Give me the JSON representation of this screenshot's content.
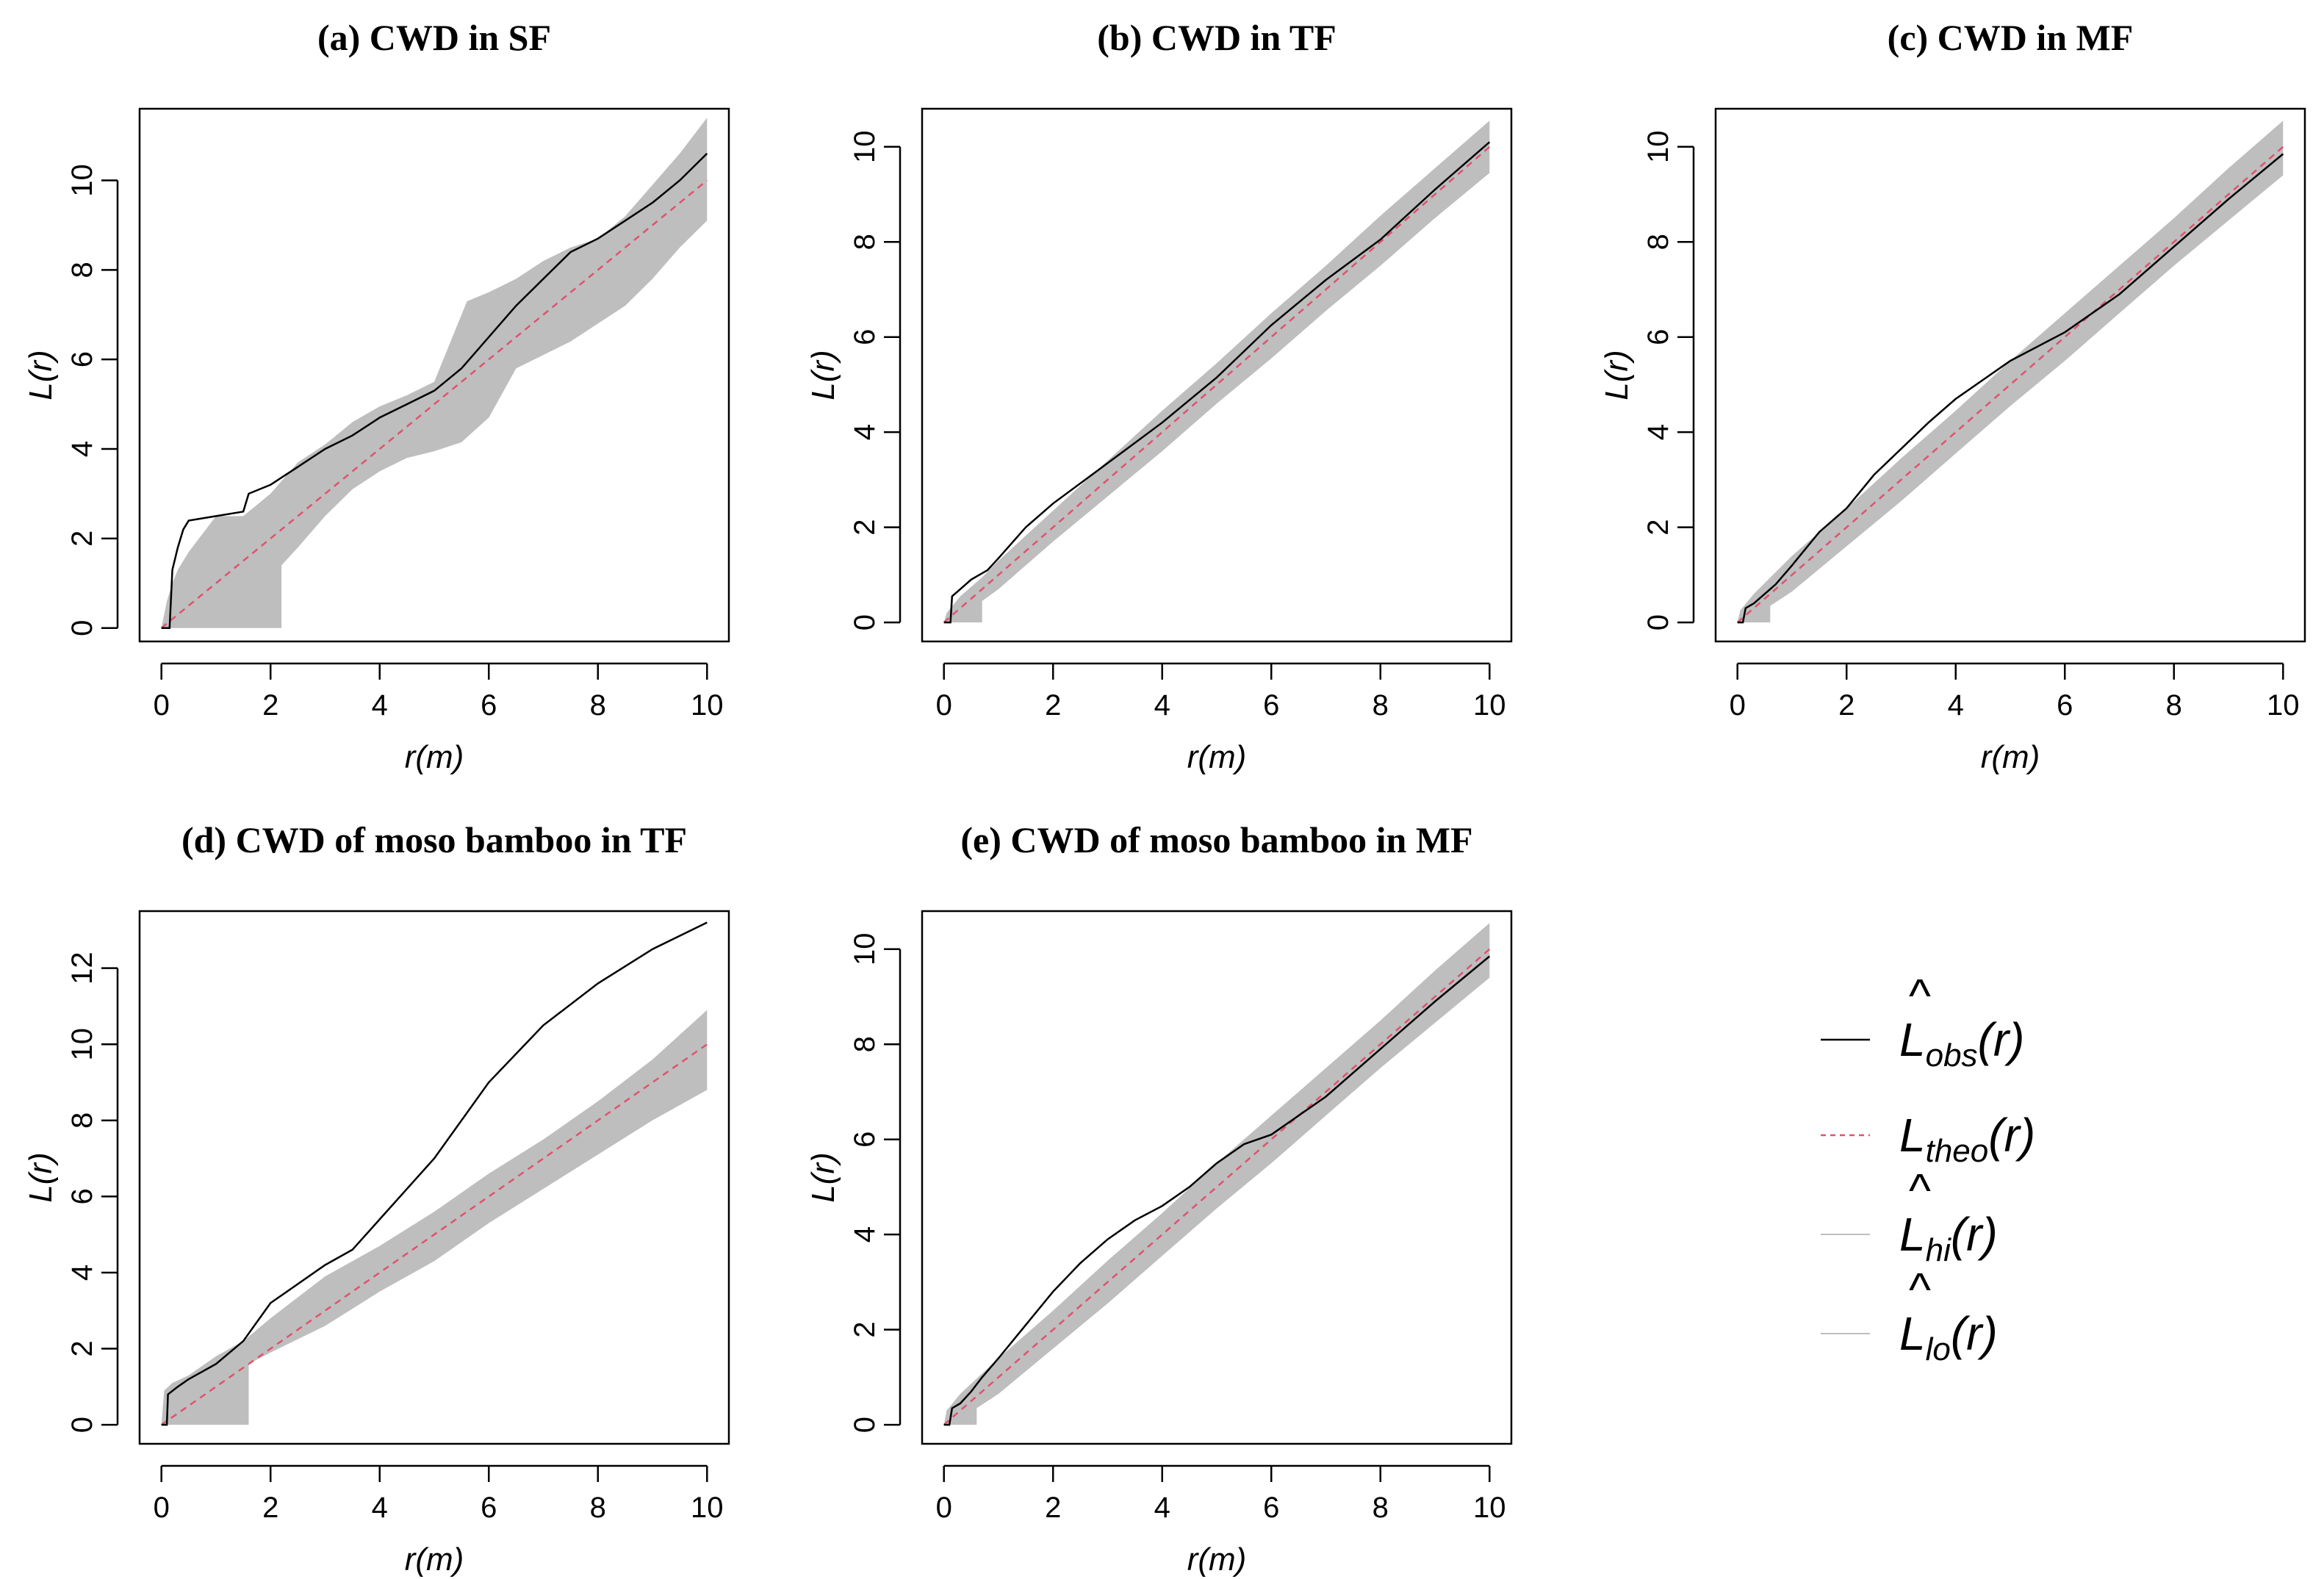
{
  "figure": {
    "legend": [
      {
        "key": "obs",
        "main": "L",
        "sub": "obs",
        "arg": "(r)",
        "hat": true,
        "color": "#000000",
        "dash": false
      },
      {
        "key": "theo",
        "main": "L",
        "sub": "theo",
        "arg": "(r)",
        "hat": false,
        "color": "#df536b",
        "dash": true
      },
      {
        "key": "hi",
        "main": "L",
        "sub": "hi",
        "arg": "(r)",
        "hat": true,
        "color": "#bebebe",
        "dash": false
      },
      {
        "key": "lo",
        "main": "L",
        "sub": "lo",
        "arg": "(r)",
        "hat": true,
        "color": "#bebebe",
        "dash": false
      }
    ],
    "hat_symbol": "^",
    "colors": {
      "envelope": "#bebebe",
      "observed": "#000000",
      "theoretical": "#df536b",
      "frame": "#000000"
    }
  },
  "chart_data": [
    {
      "type": "line",
      "title": "(a) CWD in SF",
      "xlabel": "r(m)",
      "ylabel": "L(r)",
      "xlim": [
        0,
        10
      ],
      "ylim": [
        -0.3,
        11.6
      ],
      "xticks": [
        "0",
        "2",
        "4",
        "6",
        "8",
        "10"
      ],
      "yticks": [
        "0",
        "2",
        "4",
        "6",
        "8",
        "10"
      ],
      "series": [
        {
          "name": "Lhi",
          "x": [
            0,
            0.05,
            0.1,
            0.2,
            0.3,
            0.5,
            1.0,
            1.5,
            2.0,
            2.5,
            3.0,
            3.5,
            4.0,
            4.5,
            5.0,
            5.3,
            5.6,
            6.0,
            6.5,
            7.0,
            7.5,
            8.0,
            8.5,
            9.0,
            9.5,
            10.0
          ],
          "y": [
            0,
            0.3,
            0.6,
            1.0,
            1.3,
            1.7,
            2.5,
            2.5,
            3.0,
            3.7,
            4.1,
            4.6,
            4.95,
            5.2,
            5.5,
            6.4,
            7.3,
            7.5,
            7.8,
            8.2,
            8.5,
            8.7,
            9.2,
            9.9,
            10.6,
            11.4
          ]
        },
        {
          "name": "Llo",
          "x": [
            0,
            2.2,
            2.2,
            2.5,
            3.0,
            3.5,
            4.0,
            4.5,
            5.0,
            5.5,
            6.0,
            6.5,
            7.0,
            7.5,
            8.0,
            8.5,
            9.0,
            9.5,
            10.0
          ],
          "y": [
            0,
            0,
            1.4,
            1.8,
            2.5,
            3.1,
            3.5,
            3.8,
            3.95,
            4.15,
            4.7,
            5.8,
            6.1,
            6.4,
            6.8,
            7.2,
            7.8,
            8.5,
            9.1
          ]
        },
        {
          "name": "Lobs",
          "x": [
            0,
            0.15,
            0.2,
            0.3,
            0.4,
            0.5,
            1.0,
            1.5,
            1.6,
            2.0,
            2.5,
            3.0,
            3.5,
            4.0,
            4.5,
            5.0,
            5.5,
            6.0,
            6.5,
            7.0,
            7.5,
            8.0,
            8.5,
            9.0,
            9.5,
            10.0
          ],
          "y": [
            0,
            0,
            1.3,
            1.8,
            2.2,
            2.4,
            2.5,
            2.6,
            3.0,
            3.2,
            3.6,
            4.0,
            4.3,
            4.7,
            5.0,
            5.3,
            5.8,
            6.5,
            7.2,
            7.8,
            8.4,
            8.7,
            9.1,
            9.5,
            10.0,
            10.6
          ]
        },
        {
          "name": "Ltheo",
          "x": [
            0,
            10
          ],
          "y": [
            0,
            10
          ]
        }
      ]
    },
    {
      "type": "line",
      "title": "(b) CWD in TF",
      "xlabel": "r(m)",
      "ylabel": "L(r)",
      "xlim": [
        0,
        10
      ],
      "ylim": [
        -0.4,
        10.8
      ],
      "xticks": [
        "0",
        "2",
        "4",
        "6",
        "8",
        "10"
      ],
      "yticks": [
        "0",
        "2",
        "4",
        "6",
        "8",
        "10"
      ],
      "series": [
        {
          "name": "Lhi",
          "x": [
            0,
            0.05,
            0.3,
            0.7,
            1,
            2,
            3,
            4,
            5,
            6,
            7,
            8,
            9,
            10
          ],
          "y": [
            0,
            0.2,
            0.55,
            0.95,
            1.3,
            2.35,
            3.4,
            4.45,
            5.45,
            6.5,
            7.5,
            8.55,
            9.55,
            10.55
          ]
        },
        {
          "name": "Llo",
          "x": [
            0,
            0.7,
            0.7,
            1,
            2,
            3,
            4,
            5,
            6,
            7,
            8,
            9,
            10
          ],
          "y": [
            0,
            0,
            0.45,
            0.7,
            1.7,
            2.65,
            3.6,
            4.6,
            5.55,
            6.55,
            7.5,
            8.5,
            9.45
          ]
        },
        {
          "name": "Lobs",
          "x": [
            0,
            0.12,
            0.15,
            0.3,
            0.5,
            0.8,
            1.0,
            1.5,
            2.0,
            3.0,
            4.0,
            5.0,
            6.0,
            7.0,
            8.0,
            9.0,
            10.0
          ],
          "y": [
            0,
            0,
            0.55,
            0.7,
            0.9,
            1.1,
            1.35,
            2.0,
            2.5,
            3.35,
            4.2,
            5.15,
            6.25,
            7.2,
            8.05,
            9.1,
            10.1
          ]
        },
        {
          "name": "Ltheo",
          "x": [
            0,
            10
          ],
          "y": [
            0,
            10
          ]
        }
      ]
    },
    {
      "type": "line",
      "title": "(c) CWD in MF",
      "xlabel": "r(m)",
      "ylabel": "L(r)",
      "xlim": [
        0,
        10
      ],
      "ylim": [
        -0.4,
        10.8
      ],
      "xticks": [
        "0",
        "2",
        "4",
        "6",
        "8",
        "10"
      ],
      "yticks": [
        "0",
        "2",
        "4",
        "6",
        "8",
        "10"
      ],
      "series": [
        {
          "name": "Lhi",
          "x": [
            0,
            0.05,
            0.3,
            1,
            2,
            3,
            4,
            5,
            6,
            7,
            8,
            9,
            10
          ],
          "y": [
            0,
            0.25,
            0.6,
            1.4,
            2.4,
            3.45,
            4.45,
            5.5,
            6.5,
            7.5,
            8.5,
            9.55,
            10.55
          ]
        },
        {
          "name": "Llo",
          "x": [
            0,
            0.6,
            0.6,
            1,
            2,
            3,
            4,
            5,
            6,
            7,
            8,
            9,
            10
          ],
          "y": [
            0,
            0,
            0.35,
            0.65,
            1.6,
            2.55,
            3.55,
            4.55,
            5.5,
            6.5,
            7.5,
            8.45,
            9.4
          ]
        },
        {
          "name": "Lobs",
          "x": [
            0,
            0.1,
            0.15,
            0.3,
            0.5,
            0.7,
            1.0,
            1.5,
            2.0,
            2.5,
            3.0,
            3.5,
            4.0,
            4.5,
            5.0,
            5.5,
            6.0,
            7.0,
            8.0,
            9.0,
            10.0
          ],
          "y": [
            0,
            0,
            0.3,
            0.4,
            0.6,
            0.8,
            1.2,
            1.9,
            2.4,
            3.1,
            3.65,
            4.2,
            4.7,
            5.1,
            5.5,
            5.8,
            6.1,
            6.9,
            7.9,
            8.9,
            9.85
          ]
        },
        {
          "name": "Ltheo",
          "x": [
            0,
            10
          ],
          "y": [
            0,
            10
          ]
        }
      ]
    },
    {
      "type": "line",
      "title": "(d) CWD of moso bamboo in TF",
      "xlabel": "r(m)",
      "ylabel": "L(r)",
      "xlim": [
        0,
        10
      ],
      "ylim": [
        -0.5,
        13.5
      ],
      "xticks": [
        "0",
        "2",
        "4",
        "6",
        "8",
        "10"
      ],
      "yticks": [
        "0",
        "2",
        "4",
        "6",
        "8",
        "10",
        "12"
      ],
      "series": [
        {
          "name": "Lhi",
          "x": [
            0,
            0.05,
            0.2,
            0.5,
            1,
            1.5,
            2,
            3,
            4,
            5,
            6,
            7,
            8,
            9,
            10
          ],
          "y": [
            0,
            0.9,
            1.1,
            1.3,
            1.8,
            2.2,
            2.8,
            3.9,
            4.7,
            5.6,
            6.6,
            7.5,
            8.5,
            9.6,
            10.9
          ]
        },
        {
          "name": "Llo",
          "x": [
            0,
            1.6,
            1.6,
            2,
            3,
            4,
            5,
            6,
            7,
            8,
            9,
            10
          ],
          "y": [
            0,
            0,
            1.6,
            1.9,
            2.6,
            3.5,
            4.3,
            5.3,
            6.2,
            7.1,
            8.0,
            8.8
          ]
        },
        {
          "name": "Lobs",
          "x": [
            0,
            0.1,
            0.12,
            0.3,
            0.5,
            1.0,
            1.5,
            2.0,
            3.0,
            3.5,
            4.0,
            5.0,
            6.0,
            7.0,
            8.0,
            9.0,
            10.0
          ],
          "y": [
            0,
            0,
            0.8,
            1.0,
            1.2,
            1.6,
            2.2,
            3.2,
            4.2,
            4.6,
            5.4,
            7.0,
            9.0,
            10.5,
            11.6,
            12.5,
            13.2
          ]
        },
        {
          "name": "Ltheo",
          "x": [
            0,
            10
          ],
          "y": [
            0,
            10
          ]
        }
      ]
    },
    {
      "type": "line",
      "title": "(e) CWD of moso bamboo in MF",
      "xlabel": "r(m)",
      "ylabel": "L(r)",
      "xlim": [
        0,
        10
      ],
      "ylim": [
        -0.4,
        10.8
      ],
      "xticks": [
        "0",
        "2",
        "4",
        "6",
        "8",
        "10"
      ],
      "yticks": [
        "0",
        "2",
        "4",
        "6",
        "8",
        "10"
      ],
      "series": [
        {
          "name": "Lhi",
          "x": [
            0,
            0.05,
            0.3,
            1,
            2,
            3,
            4,
            5,
            6,
            7,
            8,
            9,
            10
          ],
          "y": [
            0,
            0.3,
            0.65,
            1.4,
            2.4,
            3.45,
            4.45,
            5.5,
            6.5,
            7.5,
            8.5,
            9.55,
            10.55
          ]
        },
        {
          "name": "Llo",
          "x": [
            0,
            0.6,
            0.6,
            1,
            2,
            3,
            4,
            5,
            6,
            7,
            8,
            9,
            10
          ],
          "y": [
            0,
            0,
            0.35,
            0.65,
            1.6,
            2.55,
            3.55,
            4.55,
            5.5,
            6.5,
            7.5,
            8.45,
            9.4
          ]
        },
        {
          "name": "Lobs",
          "x": [
            0,
            0.1,
            0.15,
            0.3,
            0.5,
            0.7,
            1.0,
            1.5,
            2.0,
            2.5,
            3.0,
            3.5,
            4.0,
            4.5,
            5.0,
            5.5,
            6.0,
            7.0,
            8.0,
            9.0,
            10.0
          ],
          "y": [
            0,
            0,
            0.35,
            0.45,
            0.7,
            1.0,
            1.4,
            2.1,
            2.8,
            3.4,
            3.9,
            4.3,
            4.6,
            5.0,
            5.5,
            5.9,
            6.1,
            6.9,
            7.9,
            8.9,
            9.85
          ]
        },
        {
          "name": "Ltheo",
          "x": [
            0,
            10
          ],
          "y": [
            0,
            10
          ]
        }
      ]
    }
  ]
}
